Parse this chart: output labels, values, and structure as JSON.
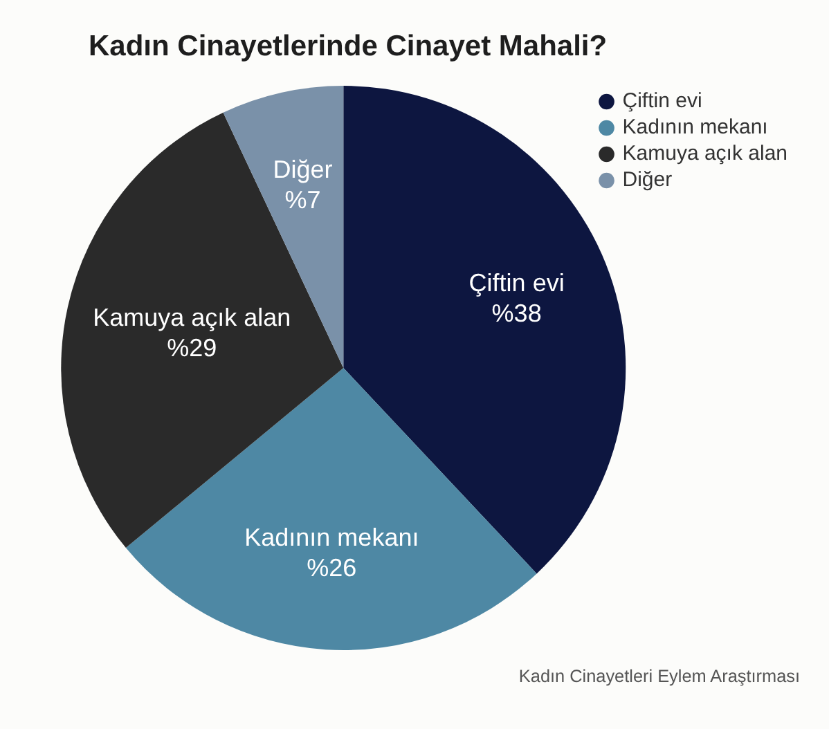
{
  "chart_data": {
    "type": "pie",
    "title": "Kadın Cinayetlerinde Cinayet Mahali?",
    "categories": [
      "Çiftin evi",
      "Kadının mekanı",
      "Kamuya açık alan",
      "Diğer"
    ],
    "values": [
      38,
      26,
      29,
      7
    ],
    "colors": [
      "#0d1640",
      "#4e88a4",
      "#2a2a2a",
      "#7a91a9"
    ],
    "value_labels": [
      "%38",
      "%26",
      "%29",
      "%7"
    ],
    "legend": "top right",
    "annotations": [
      "Kadın Cinayetleri Eylem Araştırması"
    ]
  }
}
